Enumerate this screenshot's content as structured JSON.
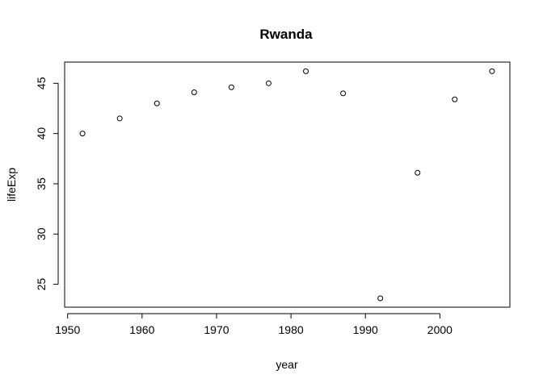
{
  "chart_data": {
    "type": "scatter",
    "title": "Rwanda",
    "xlabel": "year",
    "ylabel": "lifeExp",
    "xlim": [
      1949.6,
      2009.4
    ],
    "ylim": [
      22.72,
      47.11
    ],
    "xticks": [
      1950,
      1960,
      1970,
      1980,
      1990,
      2000
    ],
    "yticks": [
      25,
      30,
      35,
      40,
      45
    ],
    "grid": false,
    "legend": "none",
    "marker": "open-circle",
    "x": [
      1952,
      1957,
      1962,
      1967,
      1972,
      1977,
      1982,
      1987,
      1992,
      1997,
      2002,
      2007
    ],
    "y": [
      40.0,
      41.5,
      43.0,
      44.1,
      44.6,
      45.0,
      46.2,
      44.0,
      23.6,
      36.1,
      43.4,
      46.2
    ]
  }
}
